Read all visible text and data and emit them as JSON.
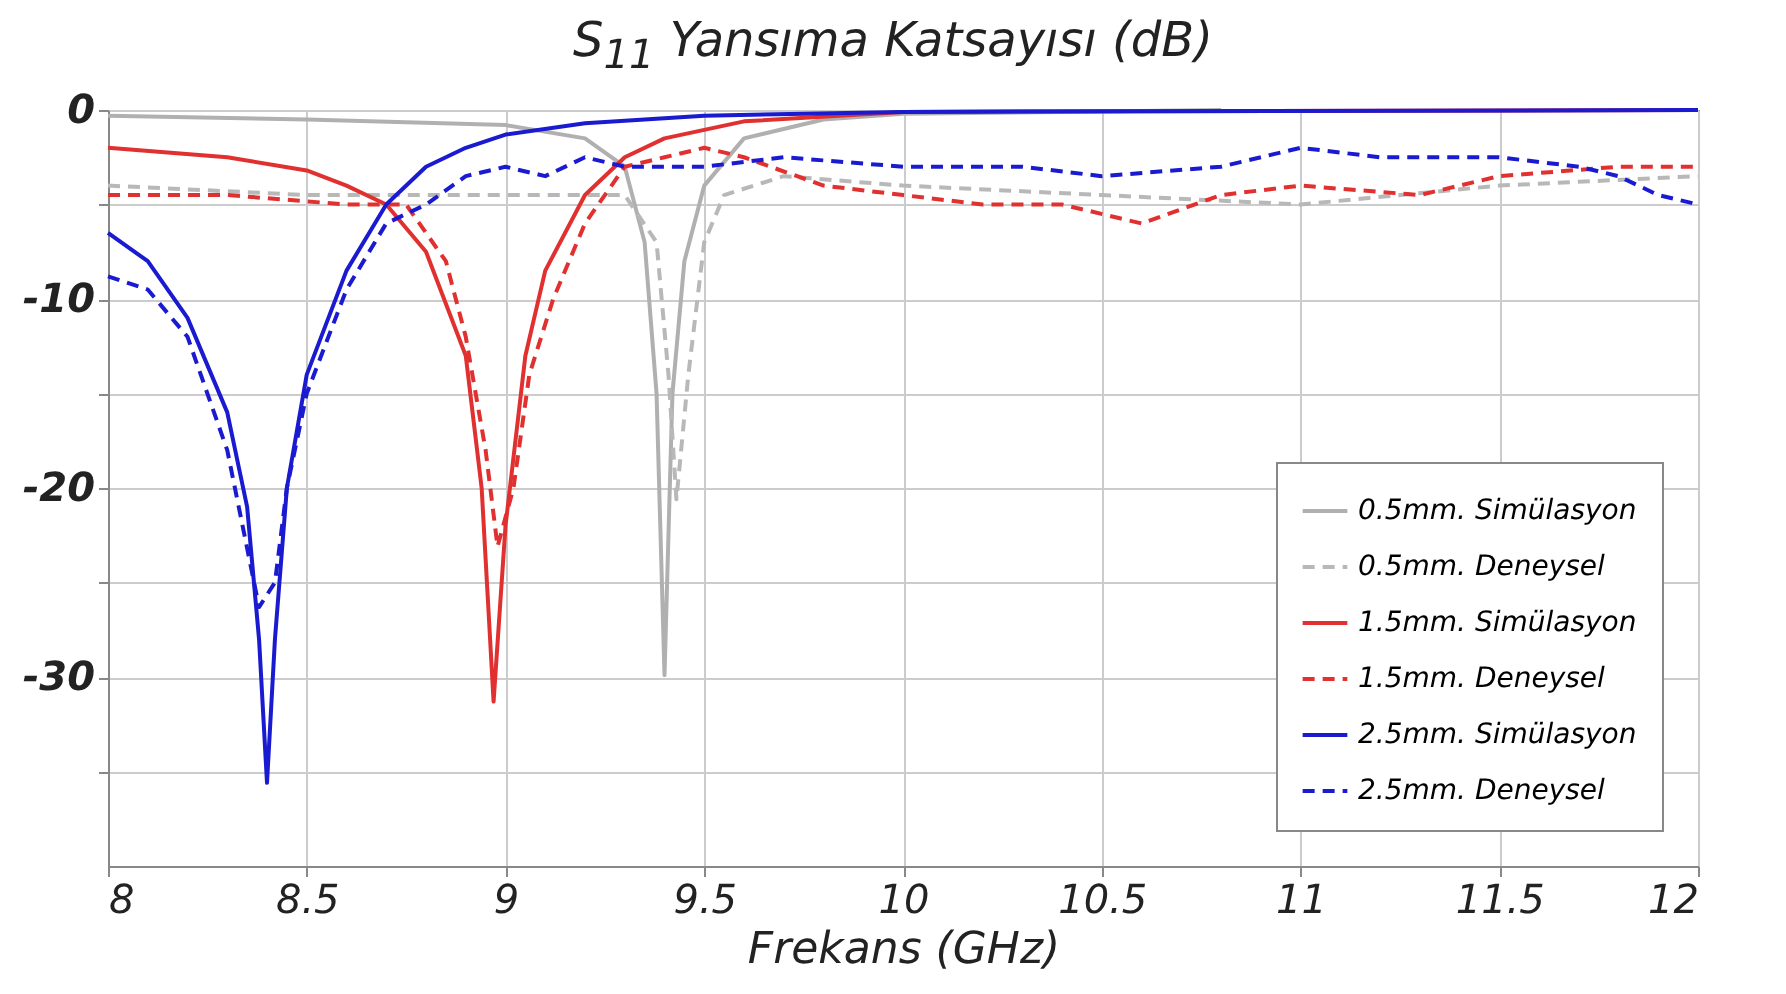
{
  "chart_data": {
    "type": "line",
    "title": "S$_{11}$ Yansıma Katsayısı (dB)",
    "xlabel": "Frekans (GHz)",
    "xlim": [
      8,
      12
    ],
    "xticks": [
      8,
      8.5,
      9,
      9.5,
      10,
      10.5,
      11,
      11.5,
      12
    ],
    "ylim": [
      -40,
      0
    ],
    "yticks": [
      {
        "value": -35,
        "label": null
      },
      -30,
      {
        "value": -25,
        "label": null
      },
      -20,
      {
        "value": -15,
        "label": null
      },
      -10,
      {
        "value": -5,
        "label": null
      },
      0
    ],
    "grid": true,
    "legend": "bottom right",
    "series": [
      {
        "name": "0.5mm. Simülasyon",
        "color": "#b0b0b0",
        "line_style": "solid",
        "x": [
          8,
          8.5,
          9,
          9.2,
          9.3,
          9.35,
          9.38,
          9.4,
          9.42,
          9.45,
          9.5,
          9.6,
          9.8,
          10,
          10.8
        ],
        "values": [
          -0.3,
          -0.5,
          -0.8,
          -1.5,
          -3,
          -7,
          -15,
          -29.9,
          -15,
          -8,
          -4,
          -1.5,
          -0.5,
          -0.2,
          0
        ]
      },
      {
        "name": "0.5mm. Deneysel",
        "color": "#b8b8b8",
        "line_style": "dashed",
        "x": [
          8,
          8.5,
          9,
          9.3,
          9.38,
          9.41,
          9.43,
          9.46,
          9.5,
          9.55,
          9.7,
          10,
          10.5,
          11,
          11.5,
          12
        ],
        "values": [
          -4,
          -4.5,
          -4.5,
          -4.5,
          -7,
          -14,
          -20.6,
          -14,
          -7,
          -4.5,
          -3.5,
          -4,
          -4.5,
          -5,
          -4,
          -3.5
        ]
      },
      {
        "name": "1.5mm. Simülasyon",
        "color": "#e03030",
        "line_style": "solid",
        "x": [
          8,
          8.3,
          8.5,
          8.6,
          8.7,
          8.8,
          8.9,
          8.94,
          8.97,
          9,
          9.05,
          9.1,
          9.2,
          9.3,
          9.4,
          9.6,
          10,
          12
        ],
        "values": [
          -2,
          -2.5,
          -3.2,
          -4,
          -5,
          -7.5,
          -13,
          -20,
          -31.3,
          -22,
          -13,
          -8.5,
          -4.5,
          -2.5,
          -1.5,
          -0.6,
          -0.1,
          0
        ]
      },
      {
        "name": "1.5mm. Deneysel",
        "color": "#e03030",
        "line_style": "dashed",
        "x": [
          8,
          8.3,
          8.6,
          8.75,
          8.85,
          8.9,
          8.95,
          8.98,
          9.02,
          9.06,
          9.12,
          9.2,
          9.3,
          9.4,
          9.5,
          9.6,
          9.8,
          10,
          10.2,
          10.4,
          10.6,
          10.8,
          11,
          11.3,
          11.5,
          11.8,
          12
        ],
        "values": [
          -4.5,
          -4.5,
          -5,
          -5,
          -8,
          -12,
          -18,
          -23.1,
          -20,
          -14,
          -10,
          -6,
          -3,
          -2.5,
          -2,
          -2.5,
          -4,
          -4.5,
          -5,
          -5,
          -6,
          -4.5,
          -4,
          -4.5,
          -3.5,
          -3,
          -3
        ]
      },
      {
        "name": "2.5mm. Simülasyon",
        "color": "#1a1ad0",
        "line_style": "solid",
        "x": [
          8,
          8.1,
          8.2,
          8.3,
          8.35,
          8.38,
          8.4,
          8.42,
          8.45,
          8.5,
          8.6,
          8.7,
          8.8,
          8.9,
          9,
          9.2,
          9.5,
          10,
          12
        ],
        "values": [
          -6.5,
          -8,
          -11,
          -16,
          -21,
          -28,
          -35.6,
          -28,
          -20,
          -14,
          -8.5,
          -5,
          -3,
          -2,
          -1.3,
          -0.7,
          -0.3,
          -0.1,
          0
        ]
      },
      {
        "name": "2.5mm. Deneysel",
        "color": "#1a1ad0",
        "line_style": "dashed",
        "x": [
          8,
          8.1,
          8.2,
          8.3,
          8.38,
          8.42,
          8.45,
          8.5,
          8.6,
          8.7,
          8.8,
          8.9,
          9,
          9.1,
          9.2,
          9.3,
          9.5,
          9.7,
          10,
          10.3,
          10.5,
          10.8,
          11,
          11.2,
          11.5,
          11.7,
          11.8,
          11.9,
          12
        ],
        "values": [
          -8.8,
          -9.5,
          -12,
          -18,
          -26.3,
          -25,
          -20,
          -15,
          -9.5,
          -6,
          -5,
          -3.5,
          -3,
          -3.5,
          -2.5,
          -3,
          -3,
          -2.5,
          -3,
          -3,
          -3.5,
          -3,
          -2,
          -2.5,
          -2.5,
          -3,
          -3.5,
          -4.5,
          -5
        ]
      }
    ]
  }
}
